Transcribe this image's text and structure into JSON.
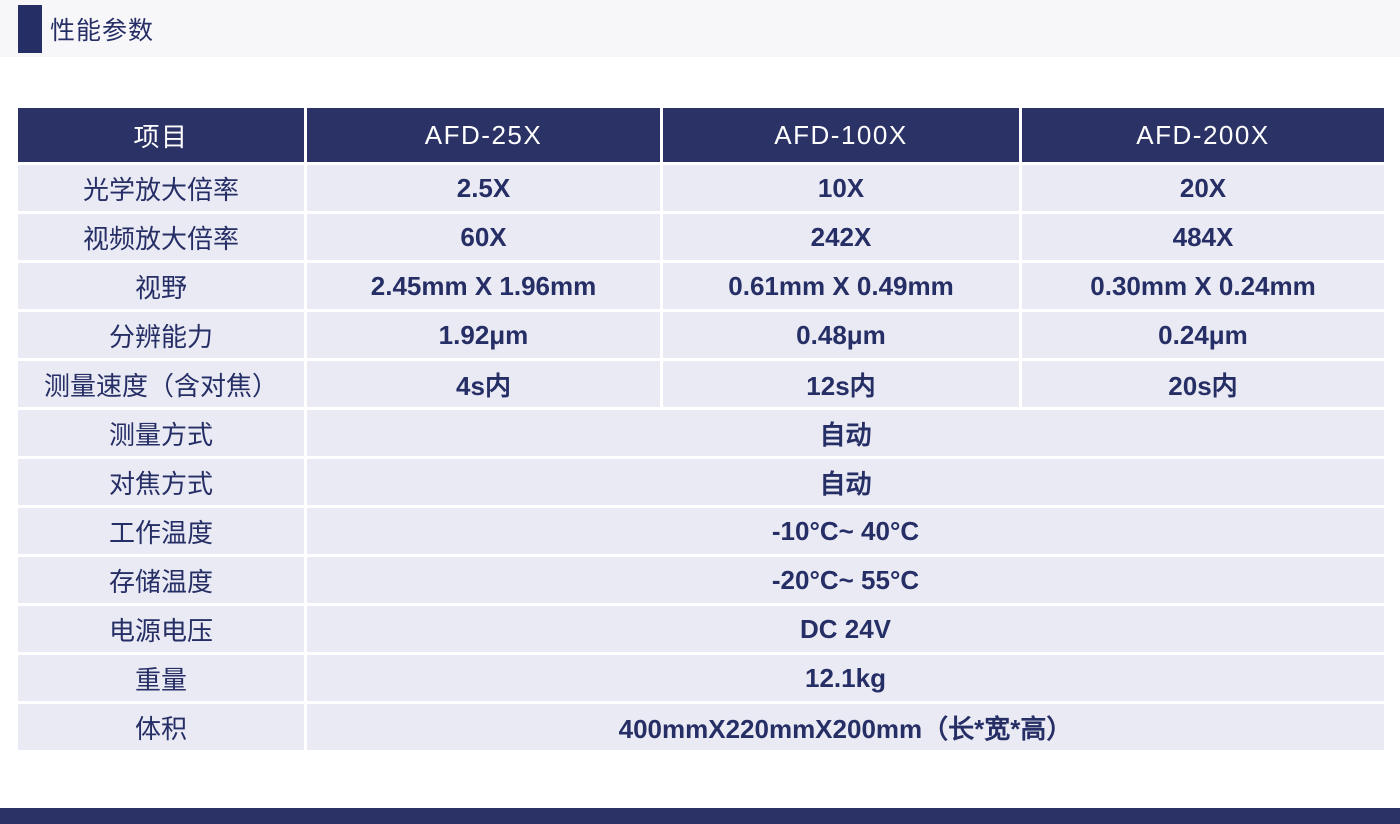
{
  "header": {
    "title": "性能参数"
  },
  "table": {
    "columns": [
      "项目",
      "AFD-25X",
      "AFD-100X",
      "AFD-200X"
    ],
    "rows": [
      {
        "label": "光学放大倍率",
        "values": [
          "2.5X",
          "10X",
          "20X"
        ]
      },
      {
        "label": "视频放大倍率",
        "values": [
          "60X",
          "242X",
          "484X"
        ]
      },
      {
        "label": "视野",
        "values": [
          "2.45mm X 1.96mm",
          "0.61mm X 0.49mm",
          "0.30mm X 0.24mm"
        ]
      },
      {
        "label": "分辨能力",
        "values": [
          "1.92μm",
          "0.48μm",
          "0.24μm"
        ]
      },
      {
        "label": "测量速度（含对焦）",
        "values": [
          "4s内",
          "12s内",
          "20s内"
        ]
      },
      {
        "label": "测量方式",
        "values": [
          "自动"
        ]
      },
      {
        "label": "对焦方式",
        "values": [
          "自动"
        ]
      },
      {
        "label": "工作温度",
        "values": [
          "-10°C~ 40°C"
        ]
      },
      {
        "label": "存储温度",
        "values": [
          "-20°C~ 55°C"
        ]
      },
      {
        "label": "电源电压",
        "values": [
          "DC 24V"
        ]
      },
      {
        "label": "重量",
        "values": [
          "12.1kg"
        ]
      },
      {
        "label": "体积",
        "values": [
          "400mmX220mmX200mm（长*宽*高）"
        ]
      }
    ]
  },
  "colors": {
    "accent_navy": "#2b3266",
    "cell_background": "#e9eaf3",
    "body_text": "#262e66",
    "header_text": "#ffffff",
    "title_strip_background": "#f7f7fa"
  }
}
